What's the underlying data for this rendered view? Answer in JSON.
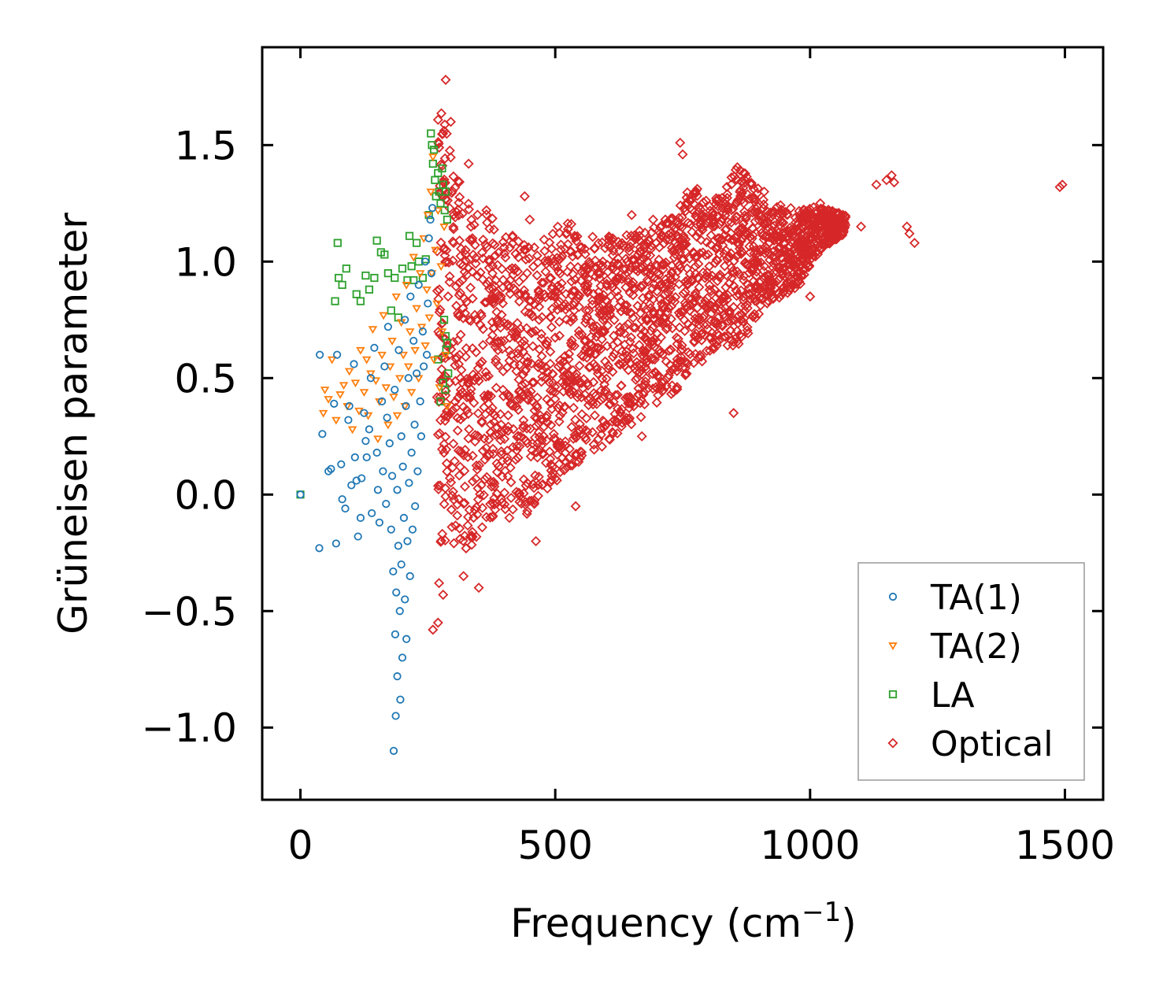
{
  "chart_data": {
    "type": "scatter",
    "title": "",
    "xlabel": "Frequency (cm",
    "xlabel_superscript": "−1",
    "xlabel_close": ")",
    "ylabel": "Grüneisen parameter",
    "xlim": [
      -75,
      1575
    ],
    "ylim": [
      -1.31,
      1.92
    ],
    "xticks": [
      0,
      500,
      1000,
      1500
    ],
    "xtick_labels": [
      "0",
      "500",
      "1000",
      "1500"
    ],
    "yticks": [
      -1.0,
      -0.5,
      0.0,
      0.5,
      1.0,
      1.5
    ],
    "ytick_labels": [
      "−1.0",
      "−0.5",
      "0.0",
      "0.5",
      "1.0",
      "1.5"
    ],
    "grid": false,
    "legend_position": "lower-right",
    "series": [
      {
        "name": "TA(1)",
        "marker": "circle",
        "color": "#1f77b4",
        "points": [
          [
            0,
            0.0
          ],
          [
            37,
            -0.23
          ],
          [
            38,
            0.6
          ],
          [
            43,
            0.26
          ],
          [
            55,
            0.1
          ],
          [
            60,
            0.11
          ],
          [
            66,
            0.39
          ],
          [
            70,
            -0.21
          ],
          [
            72,
            0.6
          ],
          [
            80,
            0.13
          ],
          [
            82,
            -0.02
          ],
          [
            88,
            -0.06
          ],
          [
            94,
            0.32
          ],
          [
            96,
            0.38
          ],
          [
            100,
            0.04
          ],
          [
            105,
            0.56
          ],
          [
            107,
            0.16
          ],
          [
            110,
            0.06
          ],
          [
            113,
            -0.18
          ],
          [
            118,
            -0.1
          ],
          [
            120,
            0.07
          ],
          [
            125,
            0.35
          ],
          [
            128,
            0.23
          ],
          [
            130,
            0.16
          ],
          [
            135,
            0.28
          ],
          [
            138,
            0.5
          ],
          [
            140,
            -0.08
          ],
          [
            145,
            0.63
          ],
          [
            150,
            0.18
          ],
          [
            152,
            0.02
          ],
          [
            155,
            -0.12
          ],
          [
            160,
            0.4
          ],
          [
            162,
            0.1
          ],
          [
            165,
            0.55
          ],
          [
            168,
            -0.04
          ],
          [
            170,
            0.33
          ],
          [
            172,
            0.72
          ],
          [
            175,
            0.22
          ],
          [
            178,
            -0.15
          ],
          [
            180,
            0.08
          ],
          [
            182,
            -0.33
          ],
          [
            183,
            -1.1
          ],
          [
            185,
            0.45
          ],
          [
            186,
            -0.6
          ],
          [
            187,
            -0.95
          ],
          [
            188,
            -0.42
          ],
          [
            190,
            0.02
          ],
          [
            190,
            -0.78
          ],
          [
            192,
            -0.22
          ],
          [
            193,
            0.62
          ],
          [
            195,
            -0.5
          ],
          [
            196,
            -0.88
          ],
          [
            198,
            0.25
          ],
          [
            198,
            -0.3
          ],
          [
            200,
            -0.7
          ],
          [
            201,
            0.12
          ],
          [
            203,
            -0.1
          ],
          [
            205,
            0.75
          ],
          [
            205,
            -0.45
          ],
          [
            207,
            0.38
          ],
          [
            208,
            -0.62
          ],
          [
            210,
            -0.2
          ],
          [
            212,
            0.5
          ],
          [
            213,
            0.05
          ],
          [
            215,
            -0.35
          ],
          [
            216,
            0.85
          ],
          [
            218,
            0.18
          ],
          [
            220,
            -0.15
          ],
          [
            222,
            0.66
          ],
          [
            224,
            0.3
          ],
          [
            225,
            -0.05
          ],
          [
            228,
            0.52
          ],
          [
            230,
            0.1
          ],
          [
            232,
            0.9
          ],
          [
            235,
            0.4
          ],
          [
            237,
            0.25
          ],
          [
            240,
            0.7
          ],
          [
            242,
            0.55
          ],
          [
            245,
            1.0
          ],
          [
            248,
            0.6
          ],
          [
            250,
            0.82
          ],
          [
            252,
            1.1
          ],
          [
            255,
            1.18
          ],
          [
            257,
            0.95
          ],
          [
            259,
            1.23
          ]
        ]
      },
      {
        "name": "TA(2)",
        "marker": "triangle-down",
        "color": "#ff7f0e",
        "points": [
          [
            45,
            0.35
          ],
          [
            48,
            0.45
          ],
          [
            55,
            0.41
          ],
          [
            62,
            0.58
          ],
          [
            70,
            0.32
          ],
          [
            78,
            0.43
          ],
          [
            85,
            0.47
          ],
          [
            92,
            0.38
          ],
          [
            96,
            0.53
          ],
          [
            102,
            0.28
          ],
          [
            108,
            0.48
          ],
          [
            115,
            0.36
          ],
          [
            118,
            0.62
          ],
          [
            125,
            0.44
          ],
          [
            130,
            0.58
          ],
          [
            133,
            0.34
          ],
          [
            138,
            0.52
          ],
          [
            142,
            0.71
          ],
          [
            148,
            0.49
          ],
          [
            152,
            0.24
          ],
          [
            155,
            0.4
          ],
          [
            160,
            0.6
          ],
          [
            163,
            0.77
          ],
          [
            168,
            0.46
          ],
          [
            172,
            0.3
          ],
          [
            176,
            0.55
          ],
          [
            180,
            0.66
          ],
          [
            183,
            0.42
          ],
          [
            188,
            0.85
          ],
          [
            190,
            0.34
          ],
          [
            195,
            0.5
          ],
          [
            198,
            0.74
          ],
          [
            202,
            0.6
          ],
          [
            205,
            0.38
          ],
          [
            208,
            0.9
          ],
          [
            212,
            0.55
          ],
          [
            215,
            0.7
          ],
          [
            218,
            0.44
          ],
          [
            222,
            1.02
          ],
          [
            225,
            0.62
          ],
          [
            228,
            0.8
          ],
          [
            232,
            0.5
          ],
          [
            235,
            0.95
          ],
          [
            238,
            0.72
          ],
          [
            242,
            1.1
          ],
          [
            245,
            0.64
          ],
          [
            248,
            0.88
          ],
          [
            250,
            1.2
          ],
          [
            253,
            0.76
          ],
          [
            256,
            1.3
          ],
          [
            258,
            0.95
          ],
          [
            260,
            1.45
          ],
          [
            262,
            0.58
          ],
          [
            265,
            1.05
          ],
          [
            268,
            0.82
          ],
          [
            270,
            1.22
          ],
          [
            273,
            0.46
          ],
          [
            276,
            0.98
          ],
          [
            278,
            0.7
          ],
          [
            282,
            1.15
          ],
          [
            285,
            0.6
          ],
          [
            288,
            0.38
          ]
        ]
      },
      {
        "name": "LA",
        "marker": "square",
        "color": "#2ca02c",
        "points": [
          [
            0,
            0.0
          ],
          [
            68,
            0.83
          ],
          [
            73,
            1.08
          ],
          [
            75,
            0.93
          ],
          [
            82,
            0.9
          ],
          [
            90,
            0.97
          ],
          [
            110,
            0.86
          ],
          [
            118,
            0.83
          ],
          [
            128,
            0.94
          ],
          [
            135,
            0.88
          ],
          [
            145,
            0.93
          ],
          [
            150,
            1.09
          ],
          [
            158,
            1.04
          ],
          [
            165,
            1.03
          ],
          [
            172,
            0.95
          ],
          [
            178,
            0.79
          ],
          [
            185,
            0.93
          ],
          [
            192,
            0.76
          ],
          [
            200,
            0.97
          ],
          [
            210,
            0.92
          ],
          [
            214,
            1.11
          ],
          [
            218,
            0.98
          ],
          [
            222,
            0.92
          ],
          [
            228,
            1.08
          ],
          [
            232,
            1.0
          ],
          [
            240,
            0.93
          ],
          [
            246,
            1.01
          ],
          [
            252,
            1.2
          ],
          [
            256,
            1.55
          ],
          [
            258,
            1.5
          ],
          [
            260,
            1.42
          ],
          [
            262,
            1.48
          ],
          [
            264,
            1.35
          ],
          [
            266,
            1.28
          ],
          [
            270,
            1.38
          ],
          [
            272,
            1.3
          ],
          [
            275,
            1.25
          ],
          [
            278,
            1.4
          ],
          [
            280,
            1.33
          ],
          [
            283,
            1.22
          ],
          [
            285,
            1.3
          ],
          [
            288,
            1.18
          ],
          [
            282,
            0.75
          ],
          [
            285,
            0.68
          ],
          [
            288,
            0.65
          ],
          [
            290,
            0.52
          ],
          [
            286,
            0.62
          ],
          [
            280,
            0.48
          ],
          [
            284,
            0.45
          ],
          [
            270,
            0.58
          ],
          [
            275,
            0.4
          ]
        ]
      },
      {
        "name": "Optical",
        "marker": "diamond",
        "color": "#d62728",
        "points": [
          [
            260,
            -0.58
          ],
          [
            270,
            -0.55
          ],
          [
            272,
            -0.38
          ],
          [
            280,
            -0.43
          ],
          [
            285,
            1.78
          ],
          [
            295,
            1.6
          ],
          [
            320,
            -0.35
          ],
          [
            330,
            1.42
          ],
          [
            350,
            -0.4
          ],
          [
            362,
            0.15
          ],
          [
            365,
            1.22
          ],
          [
            410,
            -0.1
          ],
          [
            440,
            1.28
          ],
          [
            450,
            1.18
          ],
          [
            462,
            -0.2
          ],
          [
            540,
            -0.05
          ],
          [
            650,
            1.2
          ],
          [
            670,
            0.25
          ],
          [
            692,
            1.18
          ],
          [
            700,
            0.95
          ],
          [
            745,
            1.51
          ],
          [
            750,
            1.46
          ],
          [
            760,
            1.25
          ],
          [
            850,
            0.35
          ],
          [
            870,
            1.38
          ],
          [
            910,
            1.3
          ],
          [
            1000,
            0.85
          ],
          [
            1020,
            1.25
          ],
          [
            1060,
            1.18
          ],
          [
            1100,
            1.15
          ],
          [
            1130,
            1.33
          ],
          [
            1150,
            1.35
          ],
          [
            1160,
            1.37
          ],
          [
            1165,
            1.34
          ],
          [
            1190,
            1.15
          ],
          [
            1195,
            1.12
          ],
          [
            1205,
            1.08
          ],
          [
            1490,
            1.32
          ],
          [
            1495,
            1.33
          ]
        ],
        "regions": [
          {
            "f": 268,
            "g0": -0.22,
            "g1": 1.76
          },
          {
            "f": 292,
            "g0": -0.2,
            "g1": 1.5
          },
          {
            "f": 320,
            "g0": -0.25,
            "g1": 1.3
          },
          {
            "f": 350,
            "g0": -0.2,
            "g1": 1.25
          },
          {
            "f": 380,
            "g0": -0.1,
            "g1": 1.18
          },
          {
            "f": 410,
            "g0": -0.05,
            "g1": 1.15
          },
          {
            "f": 440,
            "g0": -0.12,
            "g1": 1.12
          },
          {
            "f": 470,
            "g0": 0.0,
            "g1": 1.08
          },
          {
            "f": 500,
            "g0": 0.05,
            "g1": 1.15
          },
          {
            "f": 530,
            "g0": 0.12,
            "g1": 1.18
          },
          {
            "f": 560,
            "g0": 0.15,
            "g1": 1.1
          },
          {
            "f": 590,
            "g0": 0.2,
            "g1": 1.12
          },
          {
            "f": 620,
            "g0": 0.25,
            "g1": 1.1
          },
          {
            "f": 650,
            "g0": 0.3,
            "g1": 1.12
          },
          {
            "f": 680,
            "g0": 0.35,
            "g1": 1.15
          },
          {
            "f": 710,
            "g0": 0.4,
            "g1": 1.18
          },
          {
            "f": 740,
            "g0": 0.45,
            "g1": 1.22
          },
          {
            "f": 770,
            "g0": 0.55,
            "g1": 1.35
          },
          {
            "f": 800,
            "g0": 0.58,
            "g1": 1.25
          },
          {
            "f": 830,
            "g0": 0.65,
            "g1": 1.3
          },
          {
            "f": 860,
            "g0": 0.6,
            "g1": 1.42
          },
          {
            "f": 890,
            "g0": 0.75,
            "g1": 1.35
          },
          {
            "f": 920,
            "g0": 0.82,
            "g1": 1.22
          },
          {
            "f": 950,
            "g0": 0.85,
            "g1": 1.25
          },
          {
            "f": 980,
            "g0": 0.9,
            "g1": 1.22
          },
          {
            "f": 1010,
            "g0": 1.02,
            "g1": 1.25
          },
          {
            "f": 1040,
            "g0": 1.08,
            "g1": 1.22
          },
          {
            "f": 1070,
            "g0": 1.12,
            "g1": 1.2
          }
        ]
      }
    ]
  }
}
